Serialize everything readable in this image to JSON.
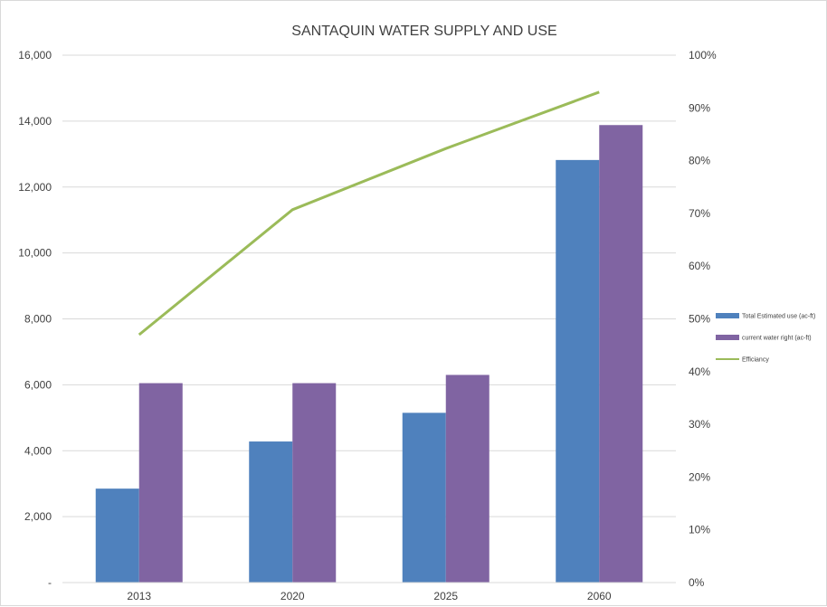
{
  "chart_data": {
    "type": "bar",
    "title": "SANTAQUIN WATER SUPPLY AND USE",
    "categories": [
      "2013",
      "2020",
      "2025",
      "2060"
    ],
    "series": [
      {
        "name": "Total Estimated use (ac-ft)",
        "kind": "bar",
        "axis": "left",
        "color": "#4f81bd",
        "values": [
          2850,
          4280,
          5150,
          12820
        ]
      },
      {
        "name": "current water right (ac-ft)",
        "kind": "bar",
        "axis": "left",
        "color": "#8064a2",
        "values": [
          6050,
          6050,
          6300,
          13880
        ]
      },
      {
        "name": "Efficiancy",
        "kind": "line",
        "axis": "right",
        "color": "#9bbb59",
        "values": [
          0.47,
          0.707,
          0.823,
          0.93
        ]
      }
    ],
    "y_left": {
      "min": 0,
      "max": 16000,
      "step": 2000,
      "tick_labels": [
        "-",
        "2,000",
        "4,000",
        "6,000",
        "8,000",
        "10,000",
        "12,000",
        "14,000",
        "16,000"
      ]
    },
    "y_right": {
      "min": 0,
      "max": 1,
      "step": 0.1,
      "tick_labels": [
        "0%",
        "10%",
        "20%",
        "30%",
        "40%",
        "50%",
        "60%",
        "70%",
        "80%",
        "90%",
        "100%"
      ]
    },
    "grid": true,
    "legend_position": "right"
  }
}
